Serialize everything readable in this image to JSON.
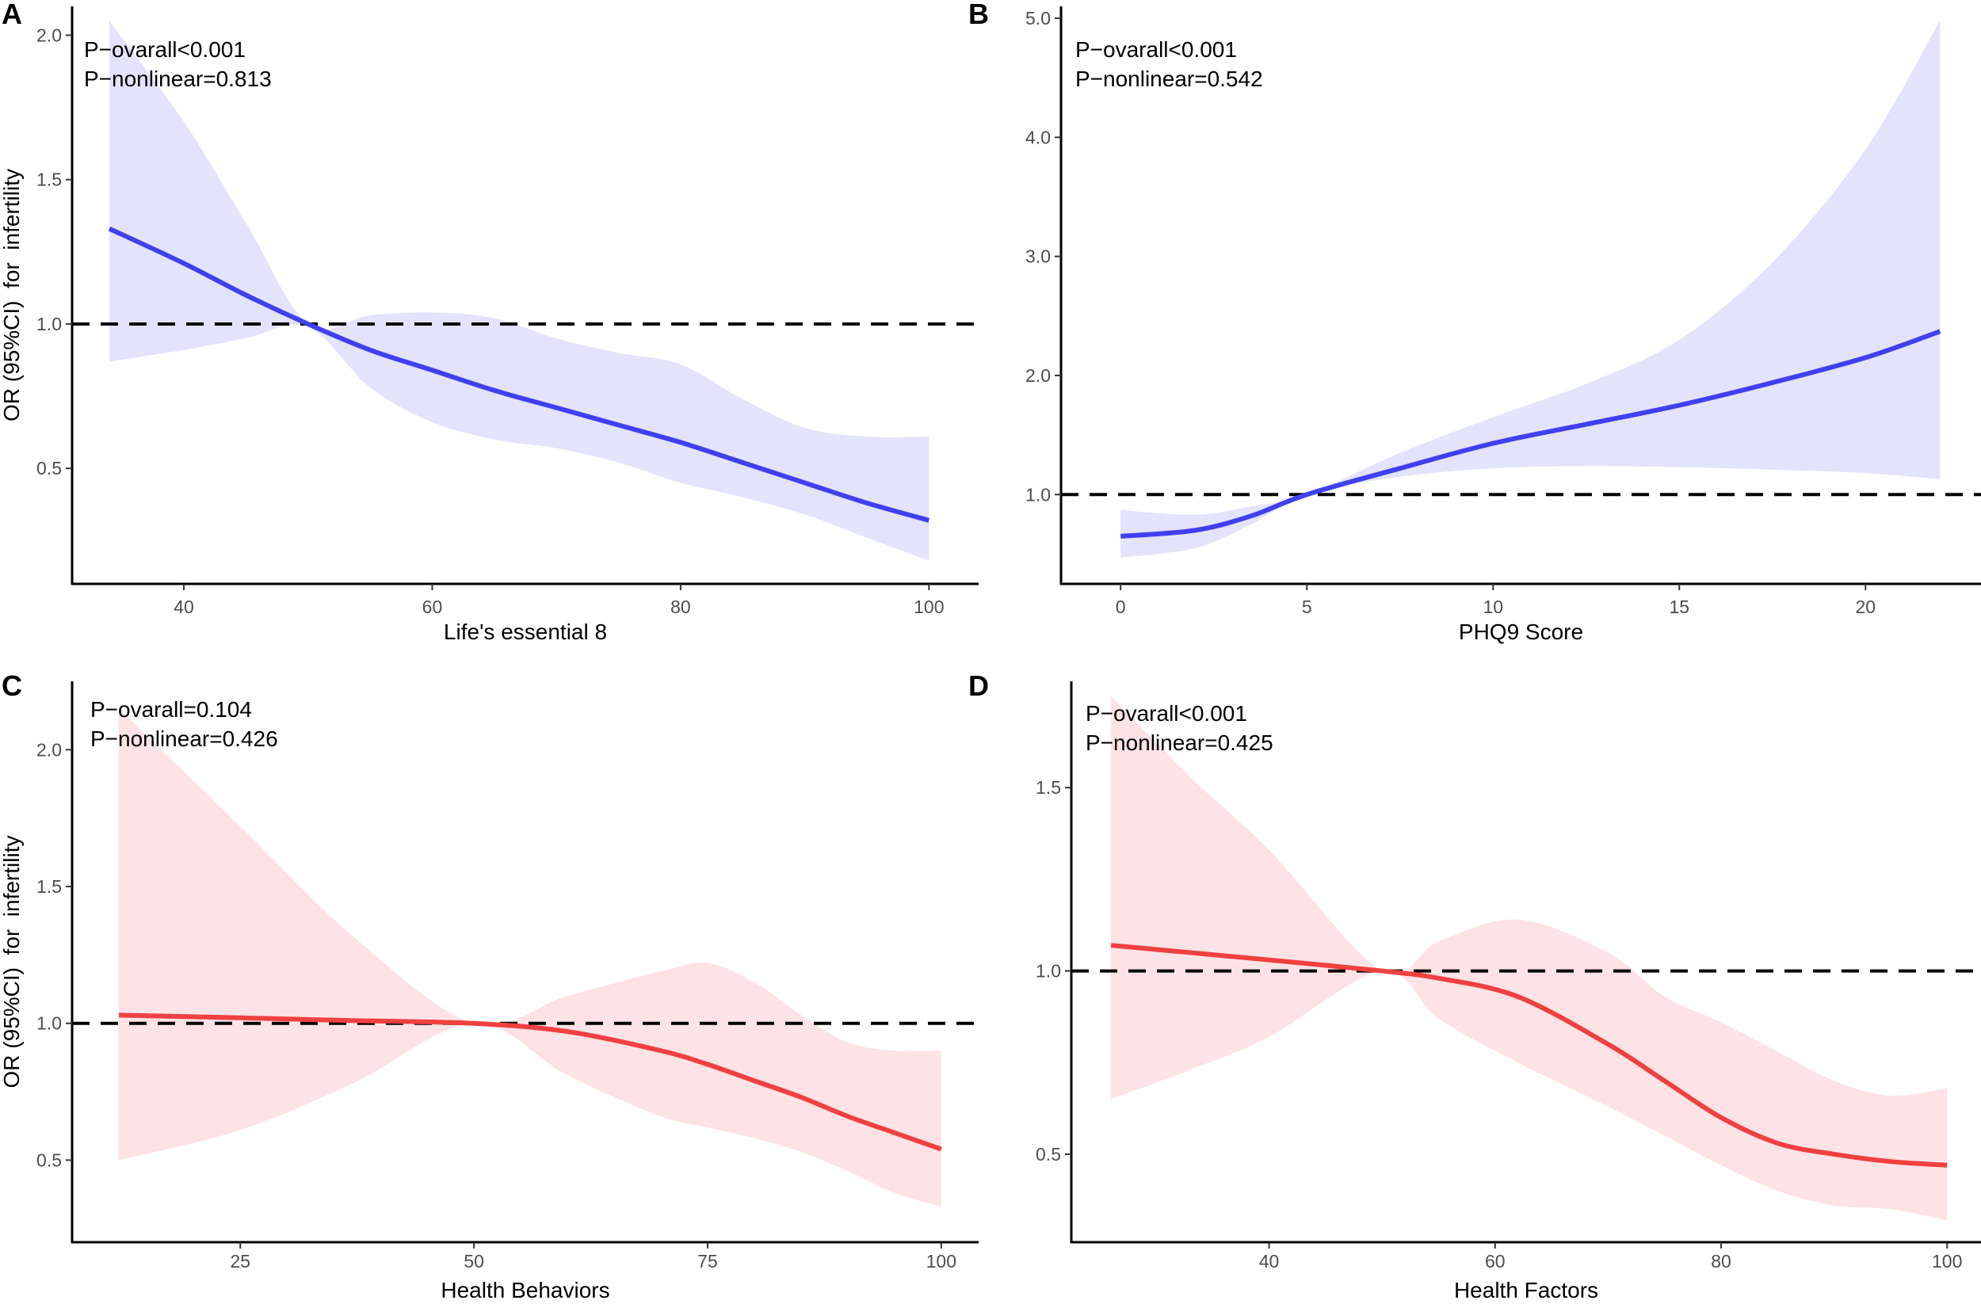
{
  "chart_data": [
    {
      "type": "line",
      "panel": "A",
      "xlabel": "Life's essential 8",
      "ylabel": "OR (95%CI)  for  infertility",
      "annotations": [
        "P−ovarall<0.001",
        "P−nonlinear=0.813"
      ],
      "xlim": [
        31,
        104
      ],
      "ylim": [
        0.1,
        2.1
      ],
      "xticks": [
        40,
        60,
        80,
        100
      ],
      "yticks": [
        0.5,
        1.0,
        1.5,
        2.0
      ],
      "ytick_labels": [
        "0.5",
        "1.0",
        "1.5",
        "2.0"
      ],
      "reference_line": 1.0,
      "color": "#4040f0",
      "band_color": "#e3e3fb",
      "x": [
        34,
        40,
        45,
        50,
        55,
        60,
        65,
        70,
        75,
        80,
        85,
        90,
        95,
        100
      ],
      "y": [
        1.33,
        1.21,
        1.1,
        1.0,
        0.91,
        0.84,
        0.77,
        0.71,
        0.65,
        0.59,
        0.52,
        0.45,
        0.38,
        0.32
      ],
      "upper": [
        2.05,
        1.7,
        1.35,
        1.0,
        1.03,
        1.04,
        1.02,
        0.95,
        0.9,
        0.86,
        0.74,
        0.64,
        0.61,
        0.61
      ],
      "lower": [
        0.87,
        0.91,
        0.95,
        0.99,
        0.78,
        0.66,
        0.6,
        0.57,
        0.52,
        0.45,
        0.4,
        0.34,
        0.26,
        0.18
      ]
    },
    {
      "type": "line",
      "panel": "B",
      "xlabel": "PHQ9 Score",
      "ylabel": "",
      "annotations": [
        "P−ovarall<0.001",
        "P−nonlinear=0.542"
      ],
      "xlim": [
        -1.6,
        23.1
      ],
      "ylim": [
        0.25,
        5.1
      ],
      "xticks": [
        0,
        5,
        10,
        15,
        20
      ],
      "yticks": [
        1.0,
        2.0,
        3.0,
        4.0,
        5.0
      ],
      "ytick_labels": [
        "1.0",
        "2.0",
        "3.0",
        "4.0",
        "5.0"
      ],
      "reference_line": 1.0,
      "color": "#4040f0",
      "band_color": "#e3e3fb",
      "x": [
        0,
        2,
        3.5,
        5,
        7.5,
        10,
        12.5,
        15,
        17.5,
        20,
        22
      ],
      "y": [
        0.65,
        0.7,
        0.82,
        1.0,
        1.22,
        1.43,
        1.59,
        1.75,
        1.94,
        2.15,
        2.37
      ],
      "upper": [
        0.87,
        0.83,
        0.9,
        1.0,
        1.35,
        1.65,
        1.93,
        2.3,
        2.95,
        3.9,
        4.98
      ],
      "lower": [
        0.47,
        0.55,
        0.75,
        1.0,
        1.15,
        1.22,
        1.24,
        1.23,
        1.21,
        1.18,
        1.13
      ]
    },
    {
      "type": "line",
      "panel": "C",
      "xlabel": "Health Behaviors",
      "ylabel": "OR (95%CI)  for  infertility",
      "annotations": [
        "P−ovarall=0.104",
        "P−nonlinear=0.426"
      ],
      "xlim": [
        7,
        104
      ],
      "ylim": [
        0.2,
        2.25
      ],
      "xticks": [
        25,
        50,
        75,
        100
      ],
      "yticks": [
        0.5,
        1.0,
        1.5,
        2.0
      ],
      "ytick_labels": [
        "0.5",
        "1.0",
        "1.5",
        "2.0"
      ],
      "reference_line": 1.0,
      "color": "#f04040",
      "band_color": "#fde3e5",
      "x": [
        12,
        25,
        37,
        50,
        60,
        70,
        75,
        80,
        85,
        90,
        95,
        100
      ],
      "y": [
        1.03,
        1.02,
        1.01,
        1.0,
        0.97,
        0.9,
        0.85,
        0.79,
        0.73,
        0.66,
        0.6,
        0.54
      ],
      "upper": [
        2.15,
        1.72,
        1.32,
        1.0,
        1.1,
        1.19,
        1.22,
        1.15,
        1.03,
        0.93,
        0.9,
        0.9
      ],
      "lower": [
        0.5,
        0.61,
        0.78,
        1.0,
        0.81,
        0.66,
        0.62,
        0.58,
        0.53,
        0.46,
        0.38,
        0.33
      ]
    },
    {
      "type": "line",
      "panel": "D",
      "xlabel": "Health Factors",
      "ylabel": "",
      "annotations": [
        "P−ovarall<0.001",
        "P−nonlinear=0.425"
      ],
      "xlim": [
        22.5,
        103
      ],
      "ylim": [
        0.26,
        1.79
      ],
      "xticks": [
        40,
        60,
        80,
        100
      ],
      "yticks": [
        0.5,
        1.0,
        1.5
      ],
      "ytick_labels": [
        "0.5",
        "1.0",
        "1.5"
      ],
      "reference_line": 1.0,
      "color": "#f04040",
      "band_color": "#fde3e5",
      "x": [
        26,
        33,
        40,
        50,
        55,
        62,
        70,
        75,
        80,
        85,
        90,
        95,
        100
      ],
      "y": [
        1.07,
        1.05,
        1.03,
        1.0,
        0.98,
        0.93,
        0.8,
        0.7,
        0.6,
        0.53,
        0.5,
        0.48,
        0.47
      ],
      "upper": [
        1.75,
        1.53,
        1.33,
        1.0,
        1.08,
        1.14,
        1.05,
        0.93,
        0.86,
        0.78,
        0.7,
        0.66,
        0.68
      ],
      "lower": [
        0.65,
        0.73,
        0.82,
        1.0,
        0.87,
        0.75,
        0.63,
        0.55,
        0.47,
        0.4,
        0.36,
        0.35,
        0.32
      ]
    }
  ]
}
